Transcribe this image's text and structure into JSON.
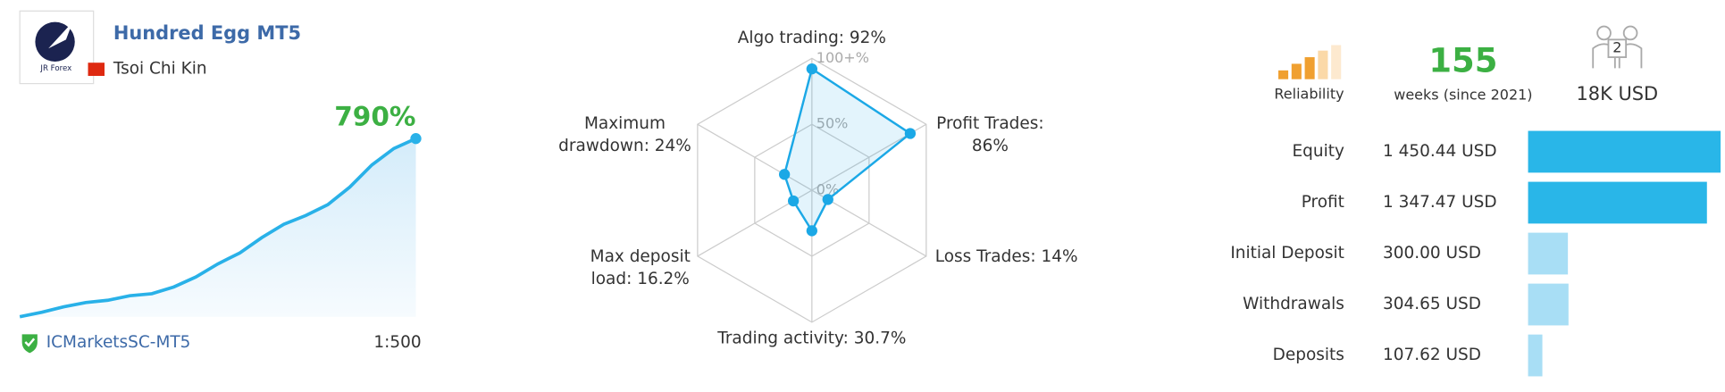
{
  "header": {
    "title": "Hundred Egg MT5",
    "author": "Tsoi Chi Kin",
    "logo_text": "JR Forex"
  },
  "growth": {
    "value": 790,
    "value_label": "790%",
    "color": "#29b1e8",
    "label_color": "#3cb043",
    "curve": [
      0,
      20,
      44,
      63,
      73,
      93,
      102,
      132,
      176,
      234,
      283,
      351,
      410,
      449,
      497,
      575,
      673,
      746,
      790
    ]
  },
  "footer": {
    "server": "ICMarketsSC-MT5",
    "leverage": "1:500"
  },
  "radar": {
    "color": "#1ba8e6",
    "ticks": [
      {
        "value": 0,
        "label": "0%"
      },
      {
        "value": 50,
        "label": "50%"
      },
      {
        "value": 100,
        "label": "100+%"
      }
    ],
    "axes": [
      {
        "lines": [
          "Algo trading:"
        ],
        "value": 92,
        "value_label": "92%"
      },
      {
        "lines": [
          "Profit Trades:"
        ],
        "value": 86,
        "value_label": "86%"
      },
      {
        "lines": [
          "Loss Trades:"
        ],
        "value": 14,
        "value_label": "14%"
      },
      {
        "lines": [
          "Trading activity:"
        ],
        "value": 30.7,
        "value_label": "30.7%"
      },
      {
        "lines": [
          "Max deposit",
          "load:"
        ],
        "value": 16.2,
        "value_label": "16.2%"
      },
      {
        "lines": [
          "Maximum",
          "drawdown:"
        ],
        "value": 24,
        "value_label": "24%"
      }
    ]
  },
  "stats": {
    "reliability": "Reliability",
    "weeks": 155,
    "weeks_label": "weeks (since 2021)",
    "subscribers": 2,
    "funds": "18K USD"
  },
  "balances": [
    {
      "name": "Equity",
      "value": 1450.44,
      "value_label": "1 450.44 USD",
      "color": "#29b6e8"
    },
    {
      "name": "Profit",
      "value": 1347.47,
      "value_label": "1 347.47 USD",
      "color": "#29b6e8"
    },
    {
      "name": "Initial Deposit",
      "value": 300.0,
      "value_label": "300.00 USD",
      "color": "#a8def5"
    },
    {
      "name": "Withdrawals",
      "value": 304.65,
      "value_label": "304.65 USD",
      "color": "#a8def5"
    },
    {
      "name": "Deposits",
      "value": 107.62,
      "value_label": "107.62 USD",
      "color": "#a8def5"
    }
  ]
}
